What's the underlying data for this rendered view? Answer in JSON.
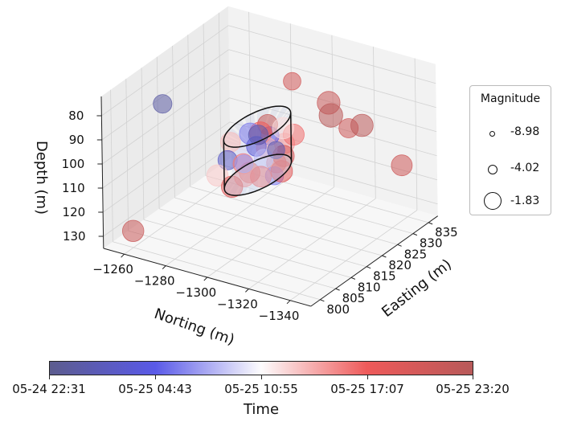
{
  "chart_data": {
    "type": "scatter",
    "subtype": "3d-scatter",
    "axes": {
      "x": {
        "label": "Norting (m)",
        "ticks": [
          -1260,
          -1280,
          -1300,
          -1320,
          -1340
        ],
        "tick_labels": [
          "−1260",
          "−1280",
          "−1300",
          "−1320",
          "−1340"
        ],
        "range": [
          -1250,
          -1350
        ]
      },
      "y": {
        "label": "Easting (m)",
        "ticks": [
          800,
          805,
          810,
          815,
          820,
          825,
          830,
          835
        ],
        "tick_labels": [
          "800",
          "805",
          "810",
          "815",
          "820",
          "825",
          "830",
          "835"
        ],
        "range": [
          797,
          838
        ]
      },
      "z": {
        "label": "Depth (m)",
        "ticks": [
          80,
          90,
          100,
          110,
          120,
          130
        ],
        "tick_labels": [
          "80",
          "90",
          "100",
          "110",
          "120",
          "130"
        ],
        "range": [
          72,
          135
        ],
        "inverted": true
      }
    },
    "grid": true,
    "cylinder": {
      "center": [
        -1295,
        817
      ],
      "radius": 9,
      "depth_range": [
        92,
        112
      ]
    },
    "points": [
      {
        "n": -1263,
        "e": 808,
        "d": 82,
        "mag": -4.1,
        "t": 0.06
      },
      {
        "n": -1285,
        "e": 835,
        "d": 92,
        "mag": -4.5,
        "t": 0.88
      },
      {
        "n": -1301,
        "e": 836,
        "d": 98,
        "mag": -2.4,
        "t": 0.92
      },
      {
        "n": -1302,
        "e": 836,
        "d": 103,
        "mag": -2.1,
        "t": 0.99
      },
      {
        "n": -1320,
        "e": 834,
        "d": 101,
        "mag": -2.6,
        "t": 0.98
      },
      {
        "n": -1312,
        "e": 835,
        "d": 105,
        "mag": -3.8,
        "t": 0.9
      },
      {
        "n": -1339,
        "e": 834,
        "d": 113,
        "mag": -3.2,
        "t": 0.9
      },
      {
        "n": -1266,
        "e": 796,
        "d": 123,
        "mag": -3.0,
        "t": 0.92
      },
      {
        "n": -1290,
        "e": 818,
        "d": 97,
        "mag": -3.0,
        "t": 0.3
      },
      {
        "n": -1292,
        "e": 820,
        "d": 98,
        "mag": -2.8,
        "t": 0.75
      },
      {
        "n": -1296,
        "e": 816,
        "d": 99,
        "mag": -3.6,
        "t": 0.2
      },
      {
        "n": -1298,
        "e": 818,
        "d": 101,
        "mag": -3.2,
        "t": 0.62
      },
      {
        "n": -1301,
        "e": 815,
        "d": 102,
        "mag": -4.0,
        "t": 0.4
      },
      {
        "n": -1294,
        "e": 813,
        "d": 104,
        "mag": -3.4,
        "t": 0.7
      },
      {
        "n": -1303,
        "e": 820,
        "d": 105,
        "mag": -3.0,
        "t": 0.85
      },
      {
        "n": -1288,
        "e": 812,
        "d": 103,
        "mag": -3.8,
        "t": 0.15
      },
      {
        "n": -1300,
        "e": 822,
        "d": 96,
        "mag": -3.0,
        "t": 0.55
      },
      {
        "n": -1296,
        "e": 812,
        "d": 108,
        "mag": -3.5,
        "t": 0.68
      },
      {
        "n": -1305,
        "e": 818,
        "d": 109,
        "mag": -2.9,
        "t": 0.8
      },
      {
        "n": -1287,
        "e": 819,
        "d": 107,
        "mag": -3.3,
        "t": 0.45
      },
      {
        "n": -1292,
        "e": 823,
        "d": 102,
        "mag": -4.2,
        "t": 0.25
      },
      {
        "n": -1298,
        "e": 821,
        "d": 110,
        "mag": -3.7,
        "t": 0.78
      },
      {
        "n": -1299,
        "e": 810,
        "d": 100,
        "mag": -4.4,
        "t": 0.35
      },
      {
        "n": -1302,
        "e": 824,
        "d": 100,
        "mag": -3.1,
        "t": 0.72
      },
      {
        "n": -1285,
        "e": 815,
        "d": 99,
        "mag": -3.6,
        "t": 0.6
      },
      {
        "n": -1293,
        "e": 810,
        "d": 111,
        "mag": -3.0,
        "t": 0.82
      },
      {
        "n": -1307,
        "e": 815,
        "d": 97,
        "mag": -4.6,
        "t": 0.1
      },
      {
        "n": -1296,
        "e": 825,
        "d": 106,
        "mag": -3.4,
        "t": 0.66
      },
      {
        "n": -1289,
        "e": 822,
        "d": 110,
        "mag": -3.9,
        "t": 0.5
      },
      {
        "n": -1304,
        "e": 812,
        "d": 106,
        "mag": -3.2,
        "t": 0.74
      },
      {
        "n": -1297,
        "e": 816,
        "d": 94,
        "mag": -3.7,
        "t": 0.08
      },
      {
        "n": -1291,
        "e": 817,
        "d": 112,
        "mag": -3.3,
        "t": 0.86
      },
      {
        "n": -1300,
        "e": 819,
        "d": 113,
        "mag": -4.3,
        "t": 0.3
      },
      {
        "n": -1294,
        "e": 821,
        "d": 95,
        "mag": -3.5,
        "t": 0.94
      },
      {
        "n": -1286,
        "e": 810,
        "d": 108,
        "mag": -3.0,
        "t": 0.58
      }
    ],
    "legend": {
      "title": "Magnitude",
      "entries": [
        "-8.98",
        "-4.02",
        "-1.83"
      ],
      "placement": "right"
    },
    "colorbar": {
      "label": "Time",
      "tick_labels": [
        "05-24 22:31",
        "05-25 04:43",
        "05-25 10:55",
        "05-25 17:07",
        "05-25 23:20"
      ],
      "colors": [
        "#5c5c8e",
        "#5a5ae8",
        "#fdfcfd",
        "#ee5a5a",
        "#b85a5a"
      ]
    }
  }
}
